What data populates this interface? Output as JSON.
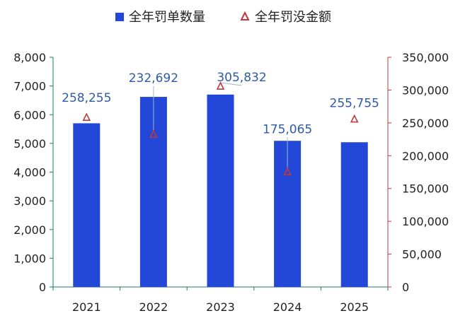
{
  "chart_data": {
    "type": "bar",
    "categories": [
      "2021",
      "2022",
      "2023",
      "2024",
      "2025"
    ],
    "series": [
      {
        "name": "全年罚单数量",
        "kind": "bar",
        "axis": "left",
        "color": "#2347d6",
        "values": [
          5700,
          6620,
          6700,
          5090,
          5040
        ]
      },
      {
        "name": "全年罚没金额",
        "kind": "marker",
        "marker": "triangle",
        "axis": "right",
        "color": "#c0393b",
        "values": [
          258255,
          232692,
          305832,
          175065,
          255755
        ],
        "labels": [
          "258,255",
          "232,692",
          "305,832",
          "175,065",
          "255,755"
        ]
      }
    ],
    "y_left": {
      "min": 0,
      "max": 8000,
      "ticks": [
        "0",
        "1,000",
        "2,000",
        "3,000",
        "4,000",
        "5,000",
        "6,000",
        "7,000",
        "8,000"
      ]
    },
    "y_right": {
      "min": 0,
      "max": 350000,
      "ticks": [
        "0",
        "50,000",
        "100,000",
        "150,000",
        "200,000",
        "250,000",
        "300,000",
        "350,000"
      ]
    },
    "legend_position": "top-center",
    "grid": false,
    "colors": {
      "left_axis": "#1f7a6b",
      "right_axis": "#c0393b",
      "label": "#2f5aa8",
      "text": "#222222"
    }
  }
}
